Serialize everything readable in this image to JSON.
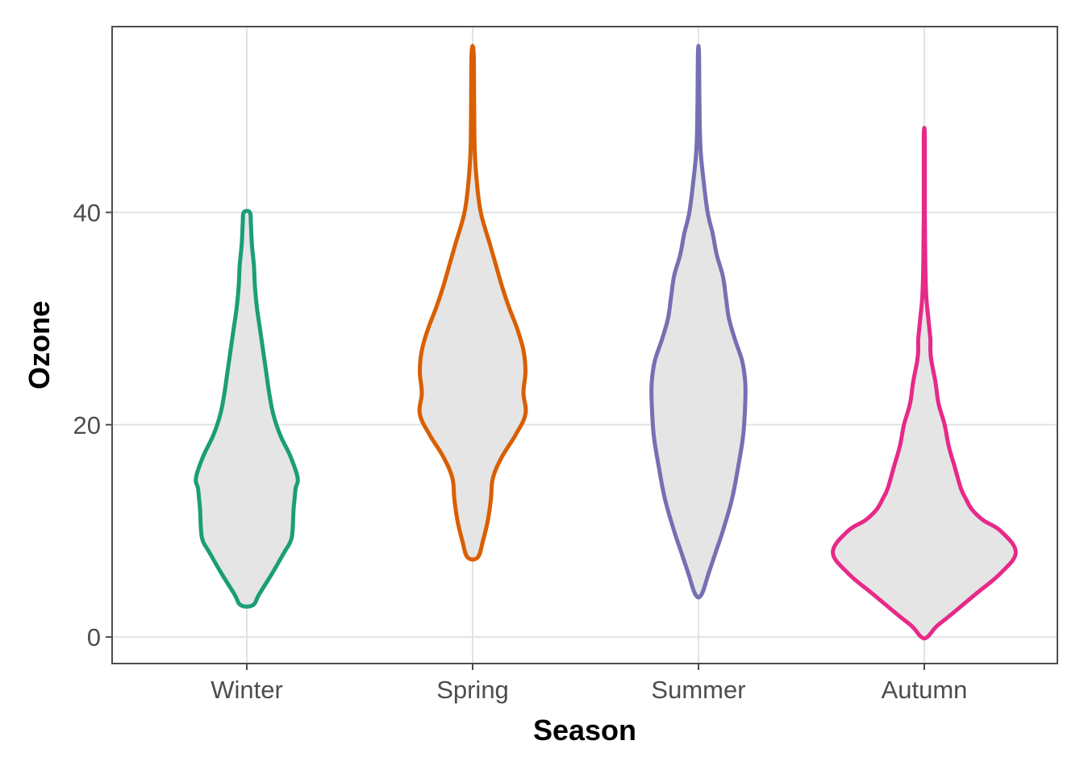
{
  "chart_data": {
    "type": "violin",
    "xlabel": "Season",
    "ylabel": "Ozone",
    "categories": [
      "Winter",
      "Spring",
      "Summer",
      "Autumn"
    ],
    "ylim": [
      -2.5,
      57.5
    ],
    "yticks": [
      0,
      20,
      40
    ],
    "grid": true,
    "colors": {
      "Winter": "#1b9e77",
      "Spring": "#d95f02",
      "Summer": "#7570b3",
      "Autumn": "#e7298a"
    },
    "series": [
      {
        "category": "Winter",
        "min": 3,
        "max": 40,
        "profile": [
          [
            3,
            0.06
          ],
          [
            4,
            0.12
          ],
          [
            6,
            0.25
          ],
          [
            8,
            0.37
          ],
          [
            9,
            0.43
          ],
          [
            10,
            0.45
          ],
          [
            12,
            0.46
          ],
          [
            13,
            0.47
          ],
          [
            14,
            0.48
          ],
          [
            15,
            0.5
          ],
          [
            17,
            0.43
          ],
          [
            19,
            0.33
          ],
          [
            21,
            0.26
          ],
          [
            23,
            0.22
          ],
          [
            25,
            0.19
          ],
          [
            27,
            0.16
          ],
          [
            29,
            0.13
          ],
          [
            31,
            0.1
          ],
          [
            33,
            0.08
          ],
          [
            35,
            0.07
          ],
          [
            37,
            0.05
          ],
          [
            39,
            0.04
          ],
          [
            40,
            0.03
          ]
        ]
      },
      {
        "category": "Spring",
        "min": 7.5,
        "max": 55,
        "profile": [
          [
            7.5,
            0.05
          ],
          [
            9,
            0.1
          ],
          [
            11,
            0.15
          ],
          [
            13,
            0.18
          ],
          [
            15,
            0.2
          ],
          [
            17,
            0.29
          ],
          [
            19,
            0.42
          ],
          [
            21,
            0.52
          ],
          [
            23,
            0.5
          ],
          [
            25,
            0.52
          ],
          [
            27,
            0.5
          ],
          [
            29,
            0.44
          ],
          [
            31,
            0.36
          ],
          [
            33,
            0.29
          ],
          [
            35,
            0.23
          ],
          [
            37,
            0.17
          ],
          [
            40,
            0.08
          ],
          [
            43,
            0.04
          ],
          [
            46,
            0.02
          ],
          [
            50,
            0.015
          ],
          [
            55,
            0.01
          ]
        ]
      },
      {
        "category": "Summer",
        "min": 4,
        "max": 55,
        "profile": [
          [
            4,
            0.03
          ],
          [
            6,
            0.1
          ],
          [
            8,
            0.17
          ],
          [
            10,
            0.24
          ],
          [
            13,
            0.33
          ],
          [
            16,
            0.39
          ],
          [
            19,
            0.44
          ],
          [
            22,
            0.46
          ],
          [
            24,
            0.46
          ],
          [
            26,
            0.43
          ],
          [
            28,
            0.36
          ],
          [
            30,
            0.3
          ],
          [
            32,
            0.27
          ],
          [
            34,
            0.24
          ],
          [
            36,
            0.18
          ],
          [
            38,
            0.14
          ],
          [
            40,
            0.09
          ],
          [
            43,
            0.05
          ],
          [
            46,
            0.02
          ],
          [
            50,
            0.01
          ],
          [
            55,
            0.005
          ]
        ]
      },
      {
        "category": "Autumn",
        "min": 0,
        "max": 47,
        "profile": [
          [
            0,
            0.03
          ],
          [
            1,
            0.12
          ],
          [
            2,
            0.25
          ],
          [
            4,
            0.5
          ],
          [
            6,
            0.75
          ],
          [
            8,
            0.9
          ],
          [
            10,
            0.75
          ],
          [
            11,
            0.58
          ],
          [
            12,
            0.47
          ],
          [
            13,
            0.41
          ],
          [
            14,
            0.36
          ],
          [
            16,
            0.3
          ],
          [
            18,
            0.24
          ],
          [
            20,
            0.2
          ],
          [
            22,
            0.14
          ],
          [
            24,
            0.11
          ],
          [
            26,
            0.07
          ],
          [
            27,
            0.06
          ],
          [
            28,
            0.06
          ],
          [
            29,
            0.05
          ],
          [
            30,
            0.04
          ],
          [
            32,
            0.02
          ],
          [
            35,
            0.01
          ],
          [
            40,
            0.005
          ],
          [
            47,
            0.005
          ]
        ]
      }
    ]
  }
}
